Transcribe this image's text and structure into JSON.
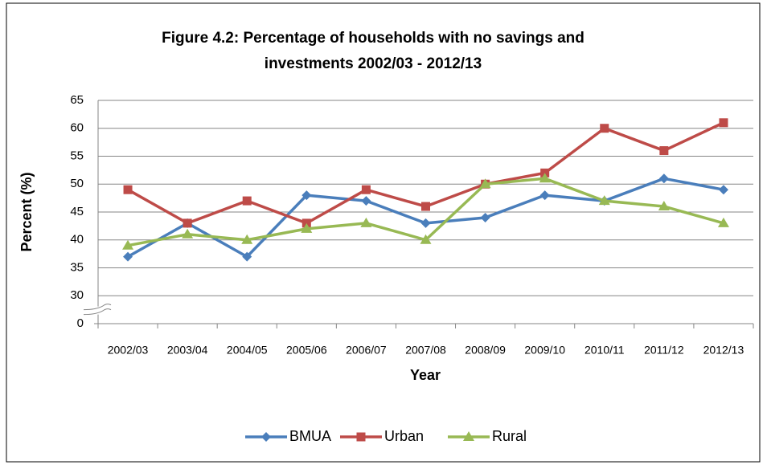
{
  "chart_data": {
    "type": "line",
    "title": [
      "Figure 4.2: Percentage of households with no savings and",
      "investments 2002/03 - 2012/13"
    ],
    "x_label": "Year",
    "y_label": "Percent (%)",
    "categories": [
      "2002/03",
      "2003/04",
      "2004/05",
      "2005/06",
      "2006/07",
      "2007/08",
      "2008/09",
      "2009/10",
      "2010/11",
      "2011/12",
      "2012/13"
    ],
    "series": [
      {
        "name": "BMUA",
        "color": "#4a7ebb",
        "marker": "diamond",
        "values": [
          37,
          43,
          37,
          48,
          47,
          43,
          44,
          48,
          47,
          51,
          49
        ]
      },
      {
        "name": "Urban",
        "color": "#be4b48",
        "marker": "square",
        "values": [
          49,
          43,
          47,
          43,
          49,
          46,
          50,
          52,
          60,
          56,
          61
        ]
      },
      {
        "name": "Rural",
        "color": "#98b954",
        "marker": "triangle",
        "values": [
          39,
          41,
          40,
          42,
          43,
          40,
          50,
          51,
          47,
          46,
          43
        ]
      }
    ],
    "ylim": [
      0,
      65
    ],
    "yticks": [
      0,
      30,
      35,
      40,
      45,
      50,
      55,
      60,
      65
    ],
    "y_axis_break": true,
    "grid": true,
    "legend": "bottom"
  }
}
